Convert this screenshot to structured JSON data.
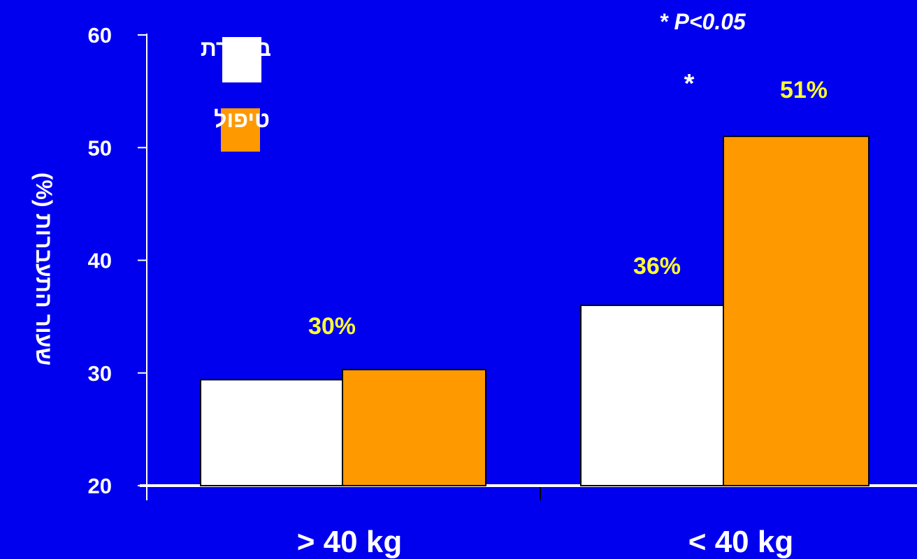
{
  "chart_data": {
    "type": "bar",
    "categories": [
      "> 40 kg",
      "< 40 kg"
    ],
    "series": [
      {
        "name": "ביקורת",
        "values": [
          29.4,
          36
        ],
        "color": "#ffffff"
      },
      {
        "name": "טיפול",
        "values": [
          30.3,
          51
        ],
        "color": "#ff9900"
      }
    ],
    "data_labels": [
      "30%",
      "36%",
      "51%"
    ],
    "ylabel": "שעור התעברות (%)",
    "xlabel": "",
    "ylim": [
      20,
      60
    ],
    "yticks": [
      "20",
      "30",
      "40",
      "50",
      "60"
    ],
    "significance_note": "* P<0.05",
    "significance_marker": "*",
    "legend_position": "top-left",
    "grid": false,
    "background_color": "#0000ee",
    "data_label_color": "#ffff33"
  }
}
